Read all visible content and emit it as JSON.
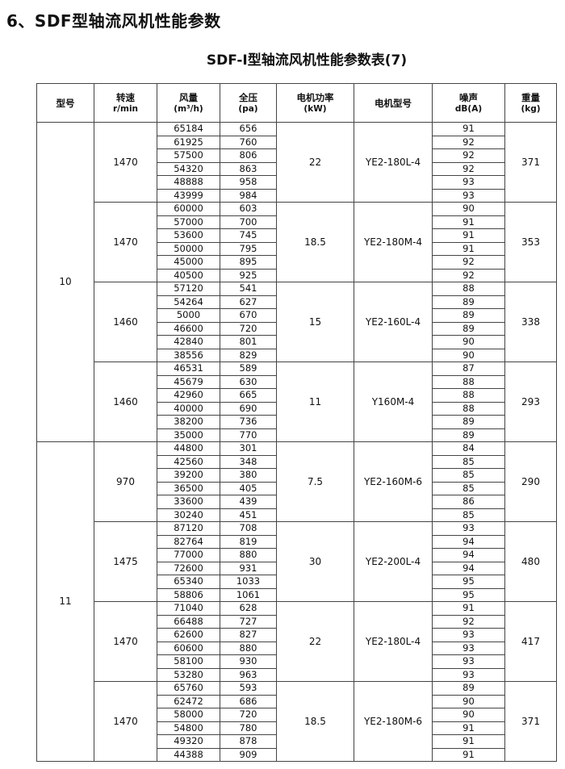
{
  "title": "6、SDF型轴流风机性能参数",
  "subtitle": "SDF-I型轴流风机性能参数表(7)",
  "headers": [
    {
      "label": "型号",
      "unit": ""
    },
    {
      "label": "转速",
      "unit": "r/min"
    },
    {
      "label": "风量",
      "unit": "(m³/h)"
    },
    {
      "label": "全压",
      "unit": "(pa)"
    },
    {
      "label": "电机功率",
      "unit": "(kW)"
    },
    {
      "label": "电机型号",
      "unit": ""
    },
    {
      "label": "噪声",
      "unit": "dB(A)"
    },
    {
      "label": "重量",
      "unit": "(kg)"
    }
  ],
  "models": [
    {
      "model": "10",
      "groups": [
        {
          "speed": "1470",
          "power": "22",
          "motor": "YE2-180L-4",
          "weight": "371",
          "rows": [
            [
              "65184",
              "656",
              "91"
            ],
            [
              "61925",
              "760",
              "92"
            ],
            [
              "57500",
              "806",
              "92"
            ],
            [
              "54320",
              "863",
              "92"
            ],
            [
              "48888",
              "958",
              "93"
            ],
            [
              "43999",
              "984",
              "93"
            ]
          ]
        },
        {
          "speed": "1470",
          "power": "18.5",
          "motor": "YE2-180M-4",
          "weight": "353",
          "rows": [
            [
              "60000",
              "603",
              "90"
            ],
            [
              "57000",
              "700",
              "91"
            ],
            [
              "53600",
              "745",
              "91"
            ],
            [
              "50000",
              "795",
              "91"
            ],
            [
              "45000",
              "895",
              "92"
            ],
            [
              "40500",
              "925",
              "92"
            ]
          ]
        },
        {
          "speed": "1460",
          "power": "15",
          "motor": "YE2-160L-4",
          "weight": "338",
          "rows": [
            [
              "57120",
              "541",
              "88"
            ],
            [
              "54264",
              "627",
              "89"
            ],
            [
              "5000",
              "670",
              "89"
            ],
            [
              "46600",
              "720",
              "89"
            ],
            [
              "42840",
              "801",
              "90"
            ],
            [
              "38556",
              "829",
              "90"
            ]
          ]
        },
        {
          "speed": "1460",
          "power": "11",
          "motor": "Y160M-4",
          "weight": "293",
          "rows": [
            [
              "46531",
              "589",
              "87"
            ],
            [
              "45679",
              "630",
              "88"
            ],
            [
              "42960",
              "665",
              "88"
            ],
            [
              "40000",
              "690",
              "88"
            ],
            [
              "38200",
              "736",
              "89"
            ],
            [
              "35000",
              "770",
              "89"
            ]
          ]
        }
      ]
    },
    {
      "model": "11",
      "groups": [
        {
          "speed": "970",
          "power": "7.5",
          "motor": "YE2-160M-6",
          "weight": "290",
          "rows": [
            [
              "44800",
              "301",
              "84"
            ],
            [
              "42560",
              "348",
              "85"
            ],
            [
              "39200",
              "380",
              "85"
            ],
            [
              "36500",
              "405",
              "85"
            ],
            [
              "33600",
              "439",
              "86"
            ],
            [
              "30240",
              "451",
              "85"
            ]
          ]
        },
        {
          "speed": "1475",
          "power": "30",
          "motor": "YE2-200L-4",
          "weight": "480",
          "rows": [
            [
              "87120",
              "708",
              "93"
            ],
            [
              "82764",
              "819",
              "94"
            ],
            [
              "77000",
              "880",
              "94"
            ],
            [
              "72600",
              "931",
              "94"
            ],
            [
              "65340",
              "1033",
              "95"
            ],
            [
              "58806",
              "1061",
              "95"
            ]
          ]
        },
        {
          "speed": "1470",
          "power": "22",
          "motor": "YE2-180L-4",
          "weight": "417",
          "rows": [
            [
              "71040",
              "628",
              "91"
            ],
            [
              "66488",
              "727",
              "92"
            ],
            [
              "62600",
              "827",
              "93"
            ],
            [
              "60600",
              "880",
              "93"
            ],
            [
              "58100",
              "930",
              "93"
            ],
            [
              "53280",
              "963",
              "93"
            ]
          ]
        },
        {
          "speed": "1470",
          "power": "18.5",
          "motor": "YE2-180M-6",
          "weight": "371",
          "rows": [
            [
              "65760",
              "593",
              "89"
            ],
            [
              "62472",
              "686",
              "90"
            ],
            [
              "58000",
              "720",
              "90"
            ],
            [
              "54800",
              "780",
              "91"
            ],
            [
              "49320",
              "878",
              "91"
            ],
            [
              "44388",
              "909",
              "91"
            ]
          ]
        }
      ]
    }
  ]
}
